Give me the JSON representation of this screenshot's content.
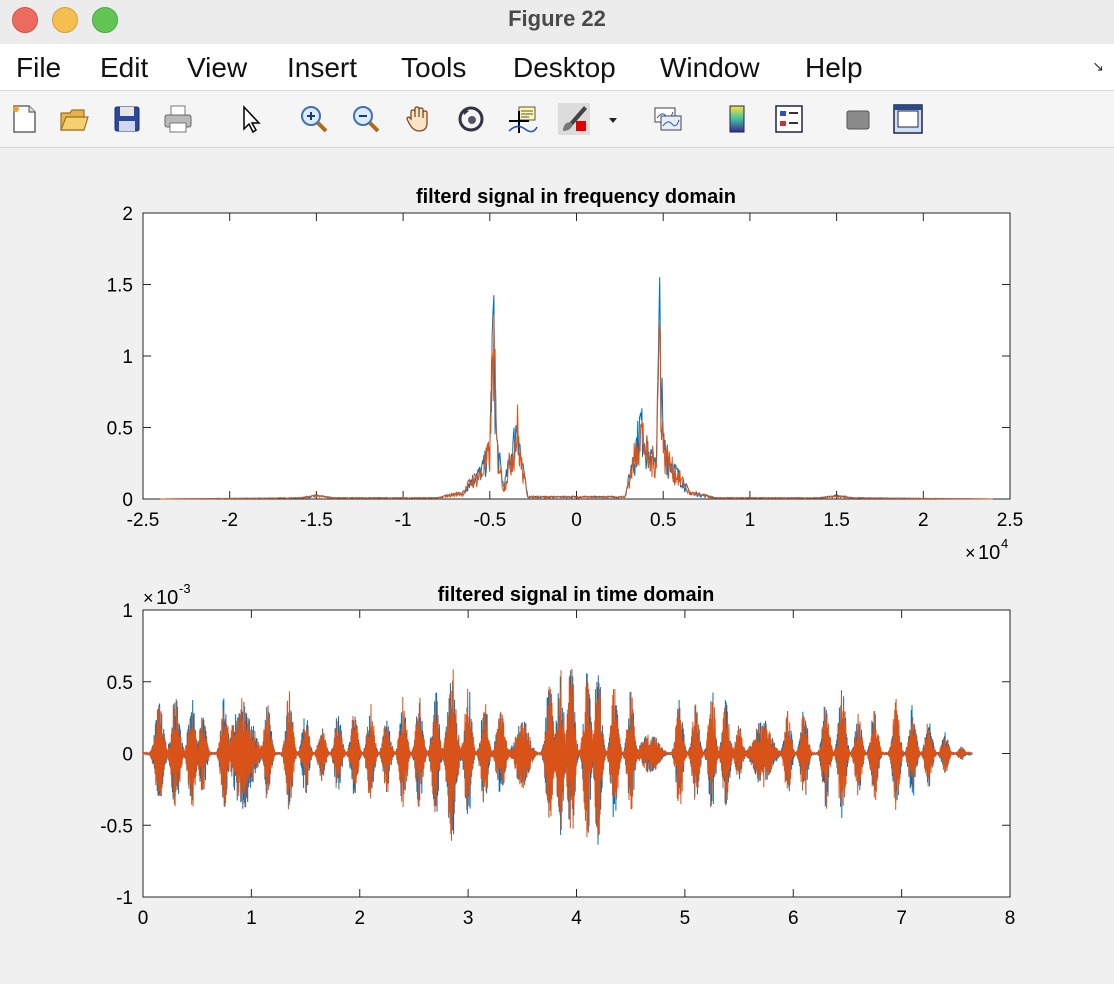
{
  "window": {
    "title": "Figure 22"
  },
  "menu": [
    "File",
    "Edit",
    "View",
    "Insert",
    "Tools",
    "Desktop",
    "Window",
    "Help"
  ],
  "toolbar": [
    "new-figure-icon",
    "open-icon",
    "save-icon",
    "print-icon",
    "pointer-icon",
    "zoom-in-icon",
    "zoom-out-icon",
    "pan-hand-icon",
    "rotate-3d-icon",
    "data-cursor-icon",
    "brush-icon",
    "dropdown-arrow-icon",
    "link-plot-icon",
    "colorbar-icon",
    "legend-icon",
    "hide-plot-tools-icon",
    "show-plot-tools-icon"
  ],
  "colors": {
    "series1": "#0072bd",
    "series2": "#d95319"
  },
  "chart_data": [
    {
      "type": "line",
      "title": "filterd signal in frequency domain",
      "xlim": [
        -25000,
        25000
      ],
      "ylim": [
        0,
        2
      ],
      "xticks": [
        "-2.5",
        "-2",
        "-1.5",
        "-1",
        "-0.5",
        "0",
        "0.5",
        "1",
        "1.5",
        "2",
        "2.5"
      ],
      "yticks": [
        "0",
        "0.5",
        "1",
        "1.5",
        "2"
      ],
      "xexponent": "10",
      "xexponent_power": "4",
      "grid": false,
      "series_envelope": [
        {
          "x": -24000,
          "y": 0
        },
        {
          "x": -16000,
          "y": 0.01
        },
        {
          "x": -15000,
          "y": 0.03
        },
        {
          "x": -14000,
          "y": 0.01
        },
        {
          "x": -8000,
          "y": 0.01
        },
        {
          "x": -7500,
          "y": 0.03
        },
        {
          "x": -6500,
          "y": 0.06
        },
        {
          "x": -6200,
          "y": 0.15
        },
        {
          "x": -5500,
          "y": 0.25
        },
        {
          "x": -5000,
          "y": 0.45
        },
        {
          "x": -4800,
          "y": 1.65
        },
        {
          "x": -4600,
          "y": 0.5
        },
        {
          "x": -4200,
          "y": 0.1
        },
        {
          "x": -3700,
          "y": 0.45
        },
        {
          "x": -3400,
          "y": 0.7
        },
        {
          "x": -3200,
          "y": 0.35
        },
        {
          "x": -2800,
          "y": 0.02
        },
        {
          "x": 2800,
          "y": 0.02
        },
        {
          "x": 3400,
          "y": 0.45
        },
        {
          "x": 3700,
          "y": 0.7
        },
        {
          "x": 4200,
          "y": 0.35
        },
        {
          "x": 4600,
          "y": 0.4
        },
        {
          "x": 4800,
          "y": 1.65
        },
        {
          "x": 5000,
          "y": 0.5
        },
        {
          "x": 5500,
          "y": 0.3
        },
        {
          "x": 6200,
          "y": 0.15
        },
        {
          "x": 6500,
          "y": 0.06
        },
        {
          "x": 7500,
          "y": 0.03
        },
        {
          "x": 8000,
          "y": 0.01
        },
        {
          "x": 14000,
          "y": 0.01
        },
        {
          "x": 15000,
          "y": 0.03
        },
        {
          "x": 16000,
          "y": 0.01
        },
        {
          "x": 24000,
          "y": 0
        }
      ]
    },
    {
      "type": "line",
      "title": "filtered signal in time domain",
      "xlim": [
        0,
        8
      ],
      "ylim": [
        -0.001,
        0.001
      ],
      "xticks": [
        "0",
        "1",
        "2",
        "3",
        "4",
        "5",
        "6",
        "7",
        "8"
      ],
      "yticks": [
        "-1",
        "-0.5",
        "0",
        "0.5",
        "1"
      ],
      "yexponent": "10",
      "yexponent_power": "-3",
      "grid": false,
      "signal_end": 7.65,
      "bursts": [
        {
          "t": 0.15,
          "a": 0.00035,
          "w": 0.05
        },
        {
          "t": 0.3,
          "a": 0.0004,
          "w": 0.05
        },
        {
          "t": 0.45,
          "a": 0.00045,
          "w": 0.04
        },
        {
          "t": 0.55,
          "a": 0.0003,
          "w": 0.04
        },
        {
          "t": 0.75,
          "a": 0.0004,
          "w": 0.04
        },
        {
          "t": 0.92,
          "a": 0.0004,
          "w": 0.12
        },
        {
          "t": 1.15,
          "a": 0.00035,
          "w": 0.04
        },
        {
          "t": 1.35,
          "a": 0.00045,
          "w": 0.04
        },
        {
          "t": 1.5,
          "a": 0.0003,
          "w": 0.04
        },
        {
          "t": 1.65,
          "a": 0.0002,
          "w": 0.04
        },
        {
          "t": 1.8,
          "a": 0.0003,
          "w": 0.04
        },
        {
          "t": 1.95,
          "a": 0.0003,
          "w": 0.04
        },
        {
          "t": 2.1,
          "a": 0.00035,
          "w": 0.04
        },
        {
          "t": 2.25,
          "a": 0.0003,
          "w": 0.04
        },
        {
          "t": 2.4,
          "a": 0.0004,
          "w": 0.04
        },
        {
          "t": 2.55,
          "a": 0.0004,
          "w": 0.04
        },
        {
          "t": 2.7,
          "a": 0.00045,
          "w": 0.04
        },
        {
          "t": 2.85,
          "a": 0.00065,
          "w": 0.05
        },
        {
          "t": 3.0,
          "a": 0.0005,
          "w": 0.04
        },
        {
          "t": 3.15,
          "a": 0.0004,
          "w": 0.04
        },
        {
          "t": 3.3,
          "a": 0.0003,
          "w": 0.05
        },
        {
          "t": 3.5,
          "a": 0.00025,
          "w": 0.08
        },
        {
          "t": 3.75,
          "a": 0.00055,
          "w": 0.04
        },
        {
          "t": 3.85,
          "a": 0.0006,
          "w": 0.04
        },
        {
          "t": 3.95,
          "a": 0.00065,
          "w": 0.04
        },
        {
          "t": 4.1,
          "a": 0.0006,
          "w": 0.04
        },
        {
          "t": 4.2,
          "a": 0.00065,
          "w": 0.04
        },
        {
          "t": 4.35,
          "a": 0.0005,
          "w": 0.04
        },
        {
          "t": 4.5,
          "a": 0.00045,
          "w": 0.04
        },
        {
          "t": 4.68,
          "a": 0.00015,
          "w": 0.1
        },
        {
          "t": 4.95,
          "a": 0.0004,
          "w": 0.04
        },
        {
          "t": 5.1,
          "a": 0.00035,
          "w": 0.04
        },
        {
          "t": 5.25,
          "a": 0.00045,
          "w": 0.04
        },
        {
          "t": 5.38,
          "a": 0.0004,
          "w": 0.04
        },
        {
          "t": 5.5,
          "a": 0.0002,
          "w": 0.04
        },
        {
          "t": 5.72,
          "a": 0.00025,
          "w": 0.1
        },
        {
          "t": 5.95,
          "a": 0.0003,
          "w": 0.04
        },
        {
          "t": 6.1,
          "a": 0.00035,
          "w": 0.04
        },
        {
          "t": 6.3,
          "a": 0.0004,
          "w": 0.04
        },
        {
          "t": 6.45,
          "a": 0.0005,
          "w": 0.04
        },
        {
          "t": 6.6,
          "a": 0.0003,
          "w": 0.04
        },
        {
          "t": 6.75,
          "a": 0.00035,
          "w": 0.04
        },
        {
          "t": 6.95,
          "a": 0.0004,
          "w": 0.04
        },
        {
          "t": 7.1,
          "a": 0.00035,
          "w": 0.04
        },
        {
          "t": 7.25,
          "a": 0.00025,
          "w": 0.04
        },
        {
          "t": 7.4,
          "a": 0.00015,
          "w": 0.04
        },
        {
          "t": 7.55,
          "a": 5e-05,
          "w": 0.04
        }
      ]
    }
  ]
}
